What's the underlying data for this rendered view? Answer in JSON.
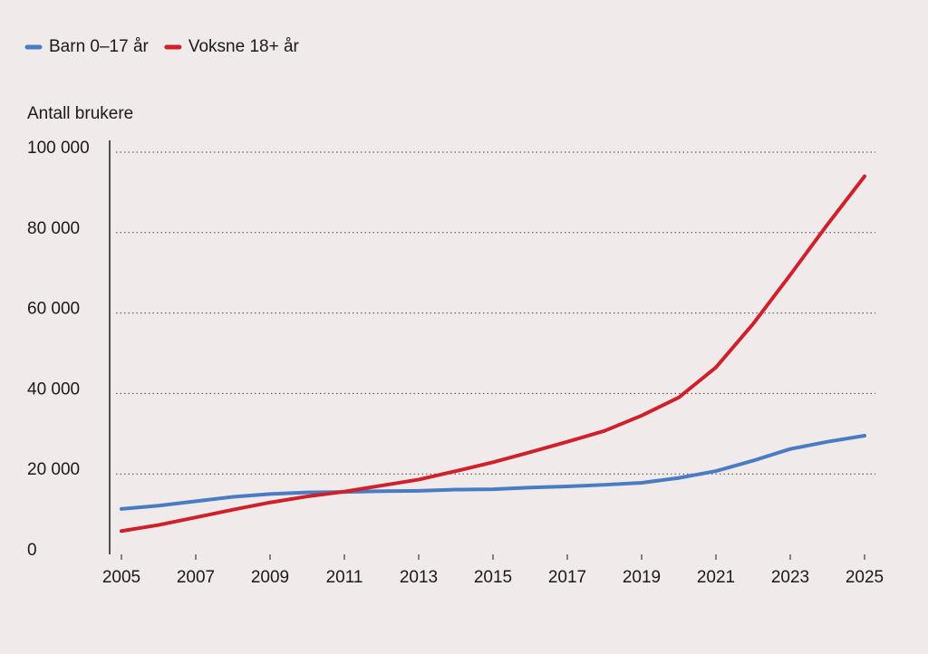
{
  "chart_data": {
    "type": "line",
    "y_axis_label": "Antall brukere",
    "x": [
      2005,
      2006,
      2007,
      2008,
      2009,
      2010,
      2011,
      2012,
      2013,
      2014,
      2015,
      2016,
      2017,
      2018,
      2019,
      2020,
      2021,
      2022,
      2023,
      2024,
      2025
    ],
    "series": [
      {
        "name": "Barn 0–17 år",
        "color": "#4a7cc4",
        "values": [
          11300,
          12100,
          13200,
          14300,
          15000,
          15400,
          15500,
          15700,
          15800,
          16100,
          16200,
          16600,
          16900,
          17300,
          17800,
          19000,
          20700,
          23300,
          26200,
          28000,
          29500
        ]
      },
      {
        "name": "Voksne 18+ år",
        "color": "#d0202c",
        "values": [
          5800,
          7300,
          9200,
          11100,
          12900,
          14400,
          15600,
          17100,
          18600,
          20700,
          22900,
          25400,
          28000,
          30700,
          34500,
          39000,
          46500,
          57300,
          69500,
          82000,
          94000
        ]
      }
    ],
    "xlim": [
      2005,
      2025
    ],
    "xticks": [
      2005,
      2007,
      2009,
      2011,
      2013,
      2015,
      2017,
      2019,
      2021,
      2023,
      2025
    ],
    "ylim": [
      0,
      100000
    ],
    "yticks": [
      0,
      {
        "value": 20000,
        "label": "20 000"
      },
      {
        "value": 40000,
        "label": "40 000"
      },
      {
        "value": 60000,
        "label": "60 000"
      },
      {
        "value": 80000,
        "label": "80 000"
      },
      {
        "value": 100000,
        "label": "100 000"
      }
    ],
    "grid": true,
    "legend": "top-left"
  }
}
